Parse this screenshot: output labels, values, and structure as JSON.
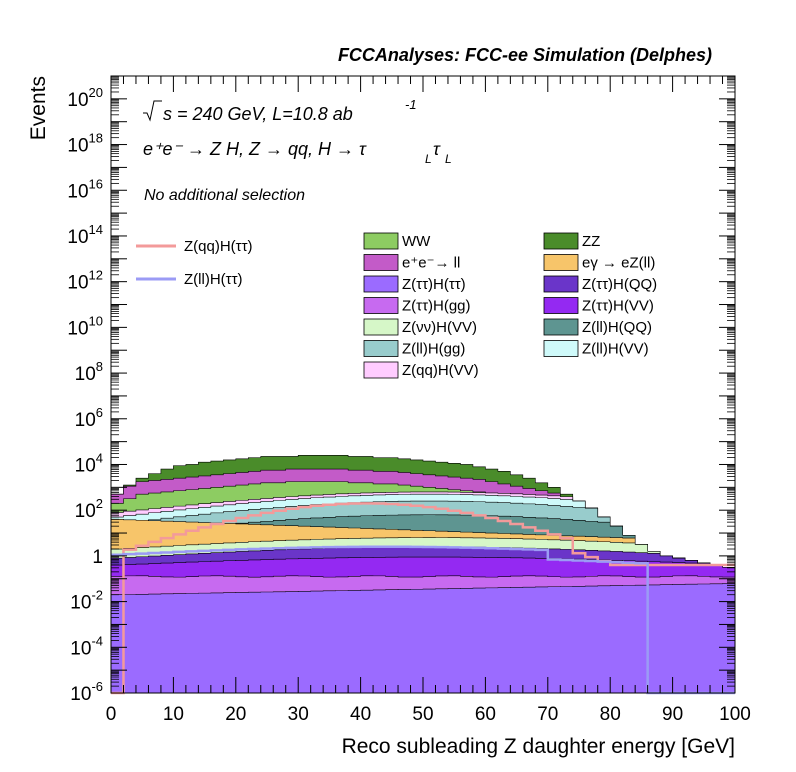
{
  "chart_data": {
    "type": "area",
    "title": "FCCAnalyses: FCC-ee Simulation (Delphes)",
    "xlabel": "Reco subleading Z daughter energy [GeV]",
    "ylabel": "Events",
    "xlim": [
      0,
      100
    ],
    "ylim": [
      1e-06,
      1e+21
    ],
    "yscale": "log",
    "legend_position": "upper-center",
    "x_ticks": [
      "0",
      "10",
      "20",
      "30",
      "40",
      "50",
      "60",
      "70",
      "80",
      "90",
      "100"
    ],
    "y_ticks": [
      {
        "base": "10",
        "exp": "-6"
      },
      {
        "base": "10",
        "exp": "-4"
      },
      {
        "base": "10",
        "exp": "-2"
      },
      {
        "base": "1",
        "exp": ""
      },
      {
        "base": "10",
        "exp": "2"
      },
      {
        "base": "10",
        "exp": "4"
      },
      {
        "base": "10",
        "exp": "6"
      },
      {
        "base": "10",
        "exp": "8"
      },
      {
        "base": "10",
        "exp": "10"
      },
      {
        "base": "10",
        "exp": "12"
      },
      {
        "base": "10",
        "exp": "14"
      },
      {
        "base": "10",
        "exp": "16"
      },
      {
        "base": "10",
        "exp": "18"
      },
      {
        "base": "10",
        "exp": "20"
      }
    ],
    "annotations": {
      "line1_prefix": "s = 240 GeV, L=10.8 ab",
      "line1_sup": "-1",
      "line2": "e⁺e⁻ → Z H, Z → qq, H → τ",
      "line2_sub1": "L",
      "line2_tau": "τ",
      "line2_sub2": "L",
      "line3": "No additional selection"
    },
    "bin_edges_start": 0,
    "bin_width": 2,
    "stack_totals_log10": [
      [
        2.7,
        3.1,
        3.4,
        3.6,
        3.8,
        3.95,
        4.0,
        4.1,
        4.15,
        4.2,
        4.25,
        4.3,
        4.35,
        4.35,
        4.35,
        4.4,
        4.4,
        4.4,
        4.4,
        4.35,
        4.35,
        4.3,
        4.3,
        4.25,
        4.2,
        4.15,
        4.1,
        4.05,
        4.0,
        3.9,
        3.8,
        3.7,
        3.55,
        3.4,
        3.2,
        3.0,
        2.7,
        2.4,
        2.1,
        1.7,
        1.3,
        0.9,
        0.5,
        0.2,
        0.0,
        -0.1,
        -0.2,
        -0.3,
        -0.4,
        -0.5
      ]
    ],
    "series": [
      {
        "name": "WW",
        "color": "#8dcc62",
        "top_log10": [
          2.3,
          2.5,
          2.7,
          2.75,
          2.8,
          2.85,
          2.9,
          2.95,
          3.0,
          3.05,
          3.1,
          3.15,
          3.2,
          3.2,
          3.25,
          3.25,
          3.25,
          3.25,
          3.25,
          3.2,
          3.2,
          3.15,
          3.15,
          3.1,
          3.05,
          3.0,
          2.95,
          2.9,
          2.85,
          2.8,
          2.7,
          2.6,
          2.5,
          2.4,
          2.3,
          2.2,
          2.0,
          1.8,
          1.6,
          1.35,
          1.1,
          0.8,
          0.5,
          0.2,
          0.0,
          -0.1,
          -0.2,
          -0.3,
          -0.4,
          -0.5
        ]
      },
      {
        "name": "ZZ",
        "color": "#4a8c2a"
      },
      {
        "name": "e⁺e⁻→ ll",
        "color": "#c35bc8"
      },
      {
        "name": "eγ → eZ(ll)",
        "color": "#f7c56a"
      },
      {
        "name": "Z(ττ)H(ττ)",
        "color": "#9b6bff"
      },
      {
        "name": "Z(ττ)H(QQ)",
        "color": "#6a35c9"
      },
      {
        "name": "Z(ττ)H(gg)",
        "color": "#c76af0"
      },
      {
        "name": "Z(ττ)H(VV)",
        "color": "#9429f2"
      },
      {
        "name": "Z(νν)H(VV)",
        "color": "#d6f7c8"
      },
      {
        "name": "Z(ll)H(QQ)",
        "color": "#5e9591"
      },
      {
        "name": "Z(ll)H(gg)",
        "color": "#98cccc"
      },
      {
        "name": "Z(ll)H(VV)",
        "color": "#cffafa"
      },
      {
        "name": "Z(qq)H(VV)",
        "color": "#ffccff"
      }
    ],
    "lines": [
      {
        "name": "Z(qq)H(ττ)",
        "color": "#f39a9a"
      },
      {
        "name": "Z(ll)H(ττ)",
        "color": "#9b9bf5"
      }
    ]
  }
}
